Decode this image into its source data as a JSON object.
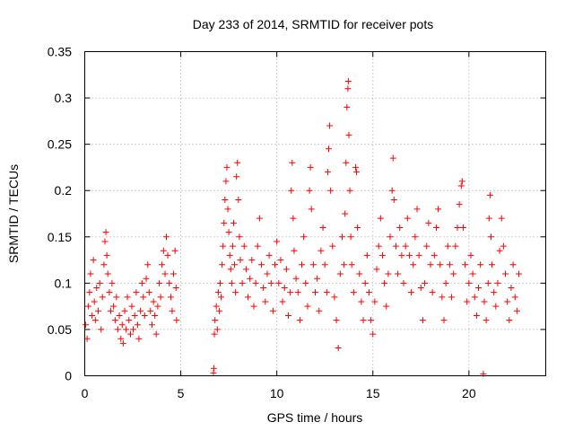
{
  "chart_data": {
    "type": "scatter",
    "title": "Day 233 of 2014, SRMTID for receiver pots",
    "xlabel": "GPS time / hours",
    "ylabel": "SRMTID / TECUs",
    "xlim": [
      0,
      24
    ],
    "ylim": [
      0,
      0.35
    ],
    "x_ticks": [
      "0",
      "5",
      "10",
      "15",
      "20"
    ],
    "x_tick_values": [
      0,
      5,
      10,
      15,
      20
    ],
    "y_ticks": [
      "0",
      "0.05",
      "0.1",
      "0.15",
      "0.2",
      "0.25",
      "0.3",
      "0.35"
    ],
    "y_tick_values": [
      0,
      0.05,
      0.1,
      0.15,
      0.2,
      0.25,
      0.3,
      0.35
    ],
    "grid": true,
    "marker": "+",
    "color": "#ff0000",
    "series": [
      {
        "points": [
          [
            0.05,
            0.055
          ],
          [
            0.12,
            0.04
          ],
          [
            0.18,
            0.075
          ],
          [
            0.25,
            0.09
          ],
          [
            0.3,
            0.11
          ],
          [
            0.38,
            0.065
          ],
          [
            0.45,
            0.125
          ],
          [
            0.5,
            0.08
          ],
          [
            0.55,
            0.06
          ],
          [
            0.62,
            0.095
          ],
          [
            0.7,
            0.07
          ],
          [
            0.78,
            0.1
          ],
          [
            0.85,
            0.05
          ],
          [
            0.92,
            0.085
          ],
          [
            1.0,
            0.12
          ],
          [
            1.05,
            0.145
          ],
          [
            1.1,
            0.155
          ],
          [
            1.15,
            0.13
          ],
          [
            1.2,
            0.11
          ],
          [
            1.28,
            0.09
          ],
          [
            1.35,
            0.07
          ],
          [
            1.42,
            0.1
          ],
          [
            1.5,
            0.075
          ],
          [
            1.58,
            0.06
          ],
          [
            1.65,
            0.085
          ],
          [
            1.72,
            0.05
          ],
          [
            1.8,
            0.065
          ],
          [
            1.88,
            0.04
          ],
          [
            1.95,
            0.055
          ],
          [
            2.0,
            0.035
          ],
          [
            2.08,
            0.07
          ],
          [
            2.15,
            0.05
          ],
          [
            2.22,
            0.085
          ],
          [
            2.3,
            0.06
          ],
          [
            2.38,
            0.045
          ],
          [
            2.45,
            0.075
          ],
          [
            2.52,
            0.05
          ],
          [
            2.6,
            0.065
          ],
          [
            2.68,
            0.09
          ],
          [
            2.75,
            0.055
          ],
          [
            2.82,
            0.04
          ],
          [
            2.9,
            0.07
          ],
          [
            2.98,
            0.1
          ],
          [
            3.05,
            0.085
          ],
          [
            3.12,
            0.065
          ],
          [
            3.2,
            0.105
          ],
          [
            3.28,
            0.12
          ],
          [
            3.35,
            0.09
          ],
          [
            3.42,
            0.07
          ],
          [
            3.5,
            0.055
          ],
          [
            3.58,
            0.08
          ],
          [
            3.65,
            0.065
          ],
          [
            3.72,
            0.045
          ],
          [
            3.8,
            0.075
          ],
          [
            3.88,
            0.1
          ],
          [
            3.95,
            0.085
          ],
          [
            4.02,
            0.12
          ],
          [
            4.1,
            0.135
          ],
          [
            4.18,
            0.11
          ],
          [
            4.25,
            0.15
          ],
          [
            4.32,
            0.13
          ],
          [
            4.4,
            0.1
          ],
          [
            4.48,
            0.085
          ],
          [
            4.55,
            0.07
          ],
          [
            4.62,
            0.11
          ],
          [
            4.7,
            0.135
          ],
          [
            4.75,
            0.095
          ],
          [
            4.78,
            0.06
          ],
          [
            6.7,
            0.003
          ],
          [
            6.72,
            0.008
          ],
          [
            6.75,
            0.045
          ],
          [
            6.78,
            0.06
          ],
          [
            6.85,
            0.075
          ],
          [
            6.9,
            0.05
          ],
          [
            6.95,
            0.09
          ],
          [
            7.0,
            0.07
          ],
          [
            7.05,
            0.1
          ],
          [
            7.1,
            0.085
          ],
          [
            7.15,
            0.12
          ],
          [
            7.2,
            0.14
          ],
          [
            7.25,
            0.165
          ],
          [
            7.3,
            0.19
          ],
          [
            7.35,
            0.21
          ],
          [
            7.4,
            0.225
          ],
          [
            7.45,
            0.18
          ],
          [
            7.5,
            0.155
          ],
          [
            7.55,
            0.13
          ],
          [
            7.6,
            0.115
          ],
          [
            7.65,
            0.1
          ],
          [
            7.7,
            0.14
          ],
          [
            7.75,
            0.165
          ],
          [
            7.8,
            0.12
          ],
          [
            7.85,
            0.09
          ],
          [
            7.9,
            0.215
          ],
          [
            7.95,
            0.23
          ],
          [
            8.0,
            0.19
          ],
          [
            8.05,
            0.15
          ],
          [
            8.1,
            0.125
          ],
          [
            8.2,
            0.1
          ],
          [
            8.3,
            0.14
          ],
          [
            8.4,
            0.115
          ],
          [
            8.5,
            0.085
          ],
          [
            8.6,
            0.105
          ],
          [
            8.7,
            0.125
          ],
          [
            8.8,
            0.075
          ],
          [
            8.9,
            0.1
          ],
          [
            9.0,
            0.14
          ],
          [
            9.1,
            0.17
          ],
          [
            9.2,
            0.12
          ],
          [
            9.3,
            0.095
          ],
          [
            9.4,
            0.08
          ],
          [
            9.5,
            0.11
          ],
          [
            9.6,
            0.13
          ],
          [
            9.7,
            0.1
          ],
          [
            9.8,
            0.07
          ],
          [
            9.9,
            0.12
          ],
          [
            10.0,
            0.145
          ],
          [
            10.1,
            0.1
          ],
          [
            10.2,
            0.125
          ],
          [
            10.3,
            0.08
          ],
          [
            10.4,
            0.095
          ],
          [
            10.5,
            0.115
          ],
          [
            10.6,
            0.065
          ],
          [
            10.7,
            0.09
          ],
          [
            10.75,
            0.2
          ],
          [
            10.8,
            0.23
          ],
          [
            10.85,
            0.17
          ],
          [
            10.9,
            0.135
          ],
          [
            11.0,
            0.105
          ],
          [
            11.1,
            0.09
          ],
          [
            11.2,
            0.06
          ],
          [
            11.3,
            0.12
          ],
          [
            11.4,
            0.15
          ],
          [
            11.5,
            0.1
          ],
          [
            11.6,
            0.075
          ],
          [
            11.7,
            0.2
          ],
          [
            11.75,
            0.225
          ],
          [
            11.8,
            0.18
          ],
          [
            11.9,
            0.12
          ],
          [
            12.0,
            0.09
          ],
          [
            12.1,
            0.105
          ],
          [
            12.2,
            0.07
          ],
          [
            12.3,
            0.135
          ],
          [
            12.4,
            0.16
          ],
          [
            12.5,
            0.12
          ],
          [
            12.6,
            0.09
          ],
          [
            12.65,
            0.22
          ],
          [
            12.7,
            0.245
          ],
          [
            12.75,
            0.27
          ],
          [
            12.8,
            0.2
          ],
          [
            12.9,
            0.14
          ],
          [
            13.0,
            0.085
          ],
          [
            13.1,
            0.06
          ],
          [
            13.2,
            0.03
          ],
          [
            13.3,
            0.11
          ],
          [
            13.4,
            0.15
          ],
          [
            13.5,
            0.12
          ],
          [
            13.55,
            0.175
          ],
          [
            13.6,
            0.23
          ],
          [
            13.65,
            0.29
          ],
          [
            13.7,
            0.31
          ],
          [
            13.72,
            0.318
          ],
          [
            13.75,
            0.26
          ],
          [
            13.8,
            0.2
          ],
          [
            13.85,
            0.15
          ],
          [
            13.9,
            0.12
          ],
          [
            14.0,
            0.09
          ],
          [
            14.1,
            0.225
          ],
          [
            14.15,
            0.22
          ],
          [
            14.2,
            0.16
          ],
          [
            14.3,
            0.11
          ],
          [
            14.4,
            0.08
          ],
          [
            14.5,
            0.06
          ],
          [
            14.6,
            0.1
          ],
          [
            14.7,
            0.13
          ],
          [
            14.8,
            0.09
          ],
          [
            14.9,
            0.06
          ],
          [
            15.0,
            0.045
          ],
          [
            15.1,
            0.08
          ],
          [
            15.2,
            0.115
          ],
          [
            15.3,
            0.14
          ],
          [
            15.4,
            0.17
          ],
          [
            15.5,
            0.13
          ],
          [
            15.6,
            0.1
          ],
          [
            15.7,
            0.075
          ],
          [
            15.8,
            0.11
          ],
          [
            15.9,
            0.15
          ],
          [
            16.0,
            0.2
          ],
          [
            16.05,
            0.235
          ],
          [
            16.1,
            0.19
          ],
          [
            16.2,
            0.14
          ],
          [
            16.3,
            0.11
          ],
          [
            16.4,
            0.16
          ],
          [
            16.5,
            0.13
          ],
          [
            16.6,
            0.1
          ],
          [
            16.7,
            0.14
          ],
          [
            16.8,
            0.17
          ],
          [
            16.9,
            0.13
          ],
          [
            17.0,
            0.09
          ],
          [
            17.1,
            0.12
          ],
          [
            17.2,
            0.15
          ],
          [
            17.3,
            0.18
          ],
          [
            17.4,
            0.13
          ],
          [
            17.5,
            0.095
          ],
          [
            17.6,
            0.06
          ],
          [
            17.7,
            0.1
          ],
          [
            17.8,
            0.14
          ],
          [
            17.9,
            0.165
          ],
          [
            18.0,
            0.12
          ],
          [
            18.1,
            0.09
          ],
          [
            18.2,
            0.13
          ],
          [
            18.3,
            0.16
          ],
          [
            18.4,
            0.18
          ],
          [
            18.5,
            0.12
          ],
          [
            18.6,
            0.085
          ],
          [
            18.7,
            0.06
          ],
          [
            18.8,
            0.1
          ],
          [
            18.9,
            0.14
          ],
          [
            19.0,
            0.12
          ],
          [
            19.1,
            0.085
          ],
          [
            19.2,
            0.11
          ],
          [
            19.3,
            0.14
          ],
          [
            19.4,
            0.16
          ],
          [
            19.5,
            0.185
          ],
          [
            19.6,
            0.205
          ],
          [
            19.65,
            0.21
          ],
          [
            19.7,
            0.16
          ],
          [
            19.8,
            0.12
          ],
          [
            19.9,
            0.08
          ],
          [
            20.0,
            0.1
          ],
          [
            20.1,
            0.13
          ],
          [
            20.2,
            0.11
          ],
          [
            20.3,
            0.085
          ],
          [
            20.4,
            0.065
          ],
          [
            20.5,
            0.095
          ],
          [
            20.6,
            0.12
          ],
          [
            20.75,
            0.002
          ],
          [
            20.8,
            0.08
          ],
          [
            20.9,
            0.06
          ],
          [
            21.0,
            0.1
          ],
          [
            21.05,
            0.17
          ],
          [
            21.1,
            0.195
          ],
          [
            21.15,
            0.15
          ],
          [
            21.2,
            0.12
          ],
          [
            21.3,
            0.09
          ],
          [
            21.4,
            0.075
          ],
          [
            21.5,
            0.1
          ],
          [
            21.6,
            0.135
          ],
          [
            21.7,
            0.17
          ],
          [
            21.8,
            0.14
          ],
          [
            21.9,
            0.11
          ],
          [
            22.0,
            0.08
          ],
          [
            22.1,
            0.06
          ],
          [
            22.2,
            0.095
          ],
          [
            22.3,
            0.12
          ],
          [
            22.4,
            0.085
          ],
          [
            22.5,
            0.07
          ],
          [
            22.6,
            0.11
          ]
        ]
      }
    ]
  }
}
